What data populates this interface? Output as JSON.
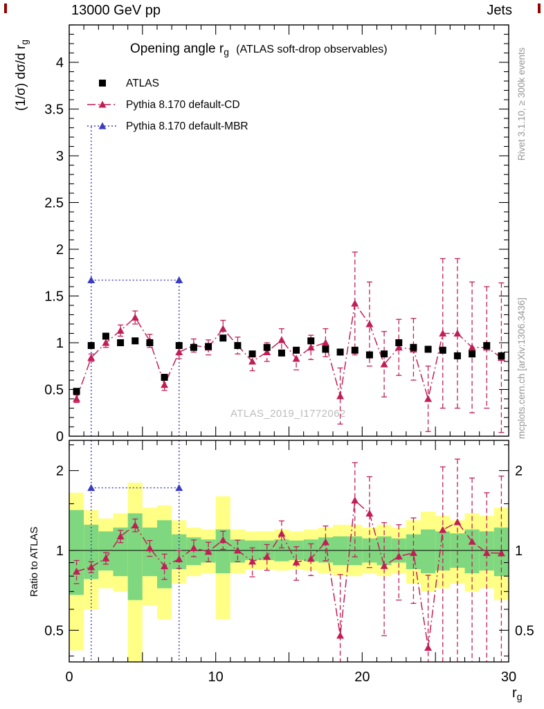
{
  "header": {
    "left": "13000 GeV pp",
    "right": "Jets"
  },
  "titles": {
    "main": "Opening angle r",
    "main_sub": "g",
    "suffix": "(ATLAS soft-drop observables)"
  },
  "legend": {
    "items": [
      {
        "label": "ATLAS"
      },
      {
        "label": "Pythia 8.170 default-CD"
      },
      {
        "label": "Pythia 8.170 default-MBR"
      }
    ]
  },
  "side": {
    "rivet": "Rivet 3.1.10, ≥ 300k events",
    "mcplots": "mcplots.cern.ch [arXiv:1306.3436]"
  },
  "watermark": {
    "text": "ATLAS_2019_I1772062"
  },
  "axes": {
    "y_main": "(1/σ) dσ/d r",
    "y_main_sub": "g",
    "ratio_label": "Ratio to ATLAS",
    "x_label": "r",
    "x_sub": "g"
  },
  "chart_data": {
    "type": "line",
    "title": "Opening angle r_g (ATLAS soft-drop observables)",
    "xlabel": "r_g",
    "ylabel": "(1/sigma) dsigma/d r_g",
    "ratio_ylabel": "Ratio to ATLAS",
    "xlim": [
      0,
      30
    ],
    "bin_width": 1,
    "main_ylim": [
      0,
      4.4
    ],
    "main_yticks": [
      0,
      0.5,
      1,
      1.5,
      2,
      2.5,
      3,
      3.5,
      4
    ],
    "ratio_scale": "log",
    "ratio_ylim": [
      0.38,
      2.6
    ],
    "ratio_yticks": [
      0.5,
      1,
      2
    ],
    "xticks": [
      0,
      10,
      20,
      30
    ],
    "x_bin_centers": [
      0.5,
      1.5,
      2.5,
      3.5,
      4.5,
      5.5,
      6.5,
      7.5,
      8.5,
      9.5,
      10.5,
      11.5,
      12.5,
      13.5,
      14.5,
      15.5,
      16.5,
      17.5,
      18.5,
      19.5,
      20.5,
      21.5,
      22.5,
      23.5,
      24.5,
      25.5,
      26.5,
      27.5,
      28.5,
      29.5
    ],
    "series": [
      {
        "name": "ATLAS",
        "marker": "square",
        "color": "#000000",
        "values": [
          0.48,
          0.97,
          1.07,
          1.0,
          1.02,
          1.0,
          0.63,
          0.97,
          0.95,
          0.96,
          1.05,
          0.97,
          0.88,
          0.95,
          0.89,
          0.92,
          1.02,
          0.93,
          0.9,
          0.92,
          0.87,
          0.88,
          1.0,
          0.95,
          0.93,
          0.92,
          0.86,
          0.88,
          0.97,
          0.86
        ],
        "errors": [
          0.01,
          0.01,
          0.01,
          0.01,
          0.01,
          0.01,
          0.01,
          0.01,
          0.01,
          0.01,
          0.02,
          0.02,
          0.02,
          0.02,
          0.02,
          0.02,
          0.02,
          0.02,
          0.03,
          0.03,
          0.03,
          0.03,
          0.03,
          0.03,
          0.03,
          0.03,
          0.04,
          0.04,
          0.04,
          0.04
        ]
      },
      {
        "name": "Pythia 8.170 default-CD",
        "marker": "triangle",
        "line": "dashdot",
        "color": "#c21e56",
        "values": [
          0.4,
          0.84,
          1.0,
          1.13,
          1.27,
          1.02,
          0.55,
          0.9,
          0.97,
          0.95,
          1.15,
          0.97,
          0.8,
          0.9,
          1.03,
          0.83,
          0.95,
          1.0,
          0.43,
          1.42,
          1.2,
          0.77,
          0.95,
          0.93,
          0.4,
          1.1,
          1.1,
          0.95,
          0.95,
          0.84
        ],
        "errors": [
          0.04,
          0.04,
          0.05,
          0.06,
          0.07,
          0.07,
          0.06,
          0.07,
          0.07,
          0.08,
          0.09,
          0.09,
          0.1,
          0.1,
          0.12,
          0.12,
          0.13,
          0.15,
          0.3,
          0.55,
          0.45,
          0.35,
          0.3,
          0.33,
          0.35,
          0.8,
          0.8,
          0.7,
          0.65,
          0.8
        ]
      },
      {
        "name": "Pythia 8.170 default-MBR",
        "marker": "triangle",
        "line": "dotted",
        "color": "#3c3cc0",
        "values": [
          null,
          1.67,
          null,
          null,
          null,
          null,
          null,
          1.67,
          null,
          null,
          null,
          null,
          null,
          null,
          null,
          null,
          null,
          null,
          null,
          null,
          null,
          null,
          null,
          null,
          null,
          null,
          null,
          null,
          null,
          null
        ],
        "err_up": [
          0,
          1.65,
          0,
          0,
          0,
          0,
          0,
          0,
          0,
          0,
          0,
          0,
          0,
          0,
          0,
          0,
          0,
          0,
          0,
          0,
          0,
          0,
          0,
          0,
          0,
          0,
          0,
          0,
          0,
          0
        ],
        "err_dn": [
          0,
          1.67,
          0,
          0,
          0,
          0,
          0,
          1.67,
          0,
          0,
          0,
          0,
          0,
          0,
          0,
          0,
          0,
          0,
          0,
          0,
          0,
          0,
          0,
          0,
          0,
          0,
          0,
          0,
          0,
          0
        ]
      }
    ],
    "mbr_ratio_full_span": true,
    "ratio_bands": {
      "yellow_color": "#ffff85",
      "green_color": "#7fd87f",
      "yellow": [
        [
          0.42,
          1.65
        ],
        [
          0.6,
          1.42
        ],
        [
          0.72,
          1.32
        ],
        [
          0.7,
          1.38
        ],
        [
          0.3,
          1.8
        ],
        [
          0.62,
          1.45
        ],
        [
          0.55,
          1.48
        ],
        [
          0.75,
          1.3
        ],
        [
          0.8,
          1.22
        ],
        [
          0.82,
          1.2
        ],
        [
          0.55,
          1.6
        ],
        [
          0.82,
          1.2
        ],
        [
          0.85,
          1.18
        ],
        [
          0.85,
          1.18
        ],
        [
          0.84,
          1.2
        ],
        [
          0.85,
          1.18
        ],
        [
          0.84,
          1.2
        ],
        [
          0.82,
          1.22
        ],
        [
          0.8,
          1.25
        ],
        [
          0.8,
          1.25
        ],
        [
          0.82,
          1.22
        ],
        [
          0.8,
          1.25
        ],
        [
          0.82,
          1.22
        ],
        [
          0.75,
          1.3
        ],
        [
          0.7,
          1.4
        ],
        [
          0.72,
          1.35
        ],
        [
          0.75,
          1.3
        ],
        [
          0.7,
          1.38
        ],
        [
          0.72,
          1.35
        ],
        [
          0.65,
          1.45
        ]
      ],
      "green": [
        [
          0.68,
          1.42
        ],
        [
          0.78,
          1.25
        ],
        [
          0.84,
          1.18
        ],
        [
          0.8,
          1.22
        ],
        [
          0.65,
          1.38
        ],
        [
          0.8,
          1.22
        ],
        [
          0.72,
          1.3
        ],
        [
          0.85,
          1.15
        ],
        [
          0.88,
          1.12
        ],
        [
          0.9,
          1.1
        ],
        [
          0.82,
          1.2
        ],
        [
          0.9,
          1.1
        ],
        [
          0.92,
          1.09
        ],
        [
          0.92,
          1.09
        ],
        [
          0.91,
          1.1
        ],
        [
          0.92,
          1.09
        ],
        [
          0.91,
          1.1
        ],
        [
          0.9,
          1.12
        ],
        [
          0.88,
          1.13
        ],
        [
          0.88,
          1.13
        ],
        [
          0.9,
          1.11
        ],
        [
          0.88,
          1.13
        ],
        [
          0.9,
          1.11
        ],
        [
          0.85,
          1.15
        ],
        [
          0.82,
          1.2
        ],
        [
          0.84,
          1.18
        ],
        [
          0.86,
          1.16
        ],
        [
          0.82,
          1.2
        ],
        [
          0.84,
          1.18
        ],
        [
          0.8,
          1.22
        ]
      ]
    }
  }
}
